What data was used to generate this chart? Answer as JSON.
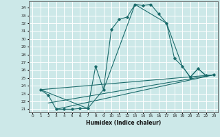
{
  "xlabel": "Humidex (Indice chaleur)",
  "bg_color": "#cce8e8",
  "grid_color": "#ffffff",
  "line_color": "#1a6b6b",
  "xlim": [
    -0.5,
    23.5
  ],
  "ylim": [
    20.6,
    34.8
  ],
  "yticks": [
    21,
    22,
    23,
    24,
    25,
    26,
    27,
    28,
    29,
    30,
    31,
    32,
    33,
    34
  ],
  "xticks": [
    0,
    1,
    2,
    3,
    4,
    5,
    6,
    7,
    8,
    9,
    10,
    11,
    12,
    13,
    14,
    15,
    16,
    17,
    18,
    19,
    20,
    21,
    22,
    23
  ],
  "curve1_x": [
    1,
    2,
    3,
    4,
    5,
    6,
    7,
    8,
    9,
    10,
    11,
    12,
    13,
    14,
    15,
    16,
    17,
    18,
    19,
    20,
    21,
    22,
    23
  ],
  "curve1_y": [
    23.5,
    22.8,
    21.0,
    21.0,
    21.0,
    21.1,
    21.1,
    26.5,
    23.5,
    31.2,
    32.5,
    32.8,
    34.4,
    34.3,
    34.4,
    33.2,
    32.0,
    27.5,
    26.5,
    25.1,
    26.2,
    25.3,
    25.4
  ],
  "curve2_x": [
    1,
    7,
    9,
    13,
    17,
    19,
    20,
    21,
    22,
    23
  ],
  "curve2_y": [
    23.5,
    21.1,
    23.5,
    34.4,
    32.0,
    26.5,
    25.1,
    26.2,
    25.3,
    25.4
  ],
  "line1_x": [
    1,
    23
  ],
  "line1_y": [
    23.5,
    25.4
  ],
  "line2_x": [
    2,
    23
  ],
  "line2_y": [
    21.8,
    25.4
  ],
  "line3_x": [
    3,
    23
  ],
  "line3_y": [
    21.0,
    25.4
  ]
}
